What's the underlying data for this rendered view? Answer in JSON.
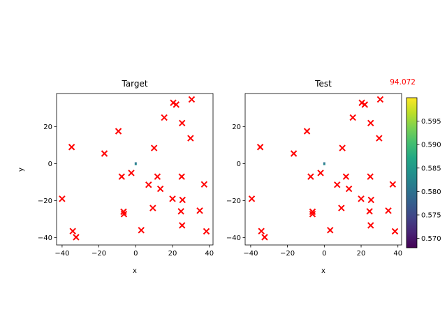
{
  "corner_value": "94.072",
  "colors": {
    "marker": "#ff0000",
    "corner_value": "#ff0000",
    "frame": "#000000"
  },
  "chart_data": [
    {
      "type": "scatter",
      "title": "Target",
      "xlabel": "x",
      "ylabel": "y",
      "xlim": [
        -43,
        42
      ],
      "ylim": [
        -44,
        38
      ],
      "xticks": [
        -40,
        -20,
        0,
        20,
        40
      ],
      "yticks": [
        -40,
        -20,
        0,
        20
      ],
      "marker": "x",
      "center_patch": {
        "x": 0,
        "y": 0,
        "value": 0.583
      },
      "points": [
        {
          "x": -40.0,
          "y": -19.0
        },
        {
          "x": -34.8,
          "y": 9.0
        },
        {
          "x": -34.2,
          "y": -36.5
        },
        {
          "x": -32.4,
          "y": -39.8
        },
        {
          "x": -17.0,
          "y": 5.5
        },
        {
          "x": -9.4,
          "y": 17.6
        },
        {
          "x": -7.6,
          "y": -7.0
        },
        {
          "x": -6.6,
          "y": -26.0
        },
        {
          "x": -6.4,
          "y": -27.3
        },
        {
          "x": -2.4,
          "y": -5.0
        },
        {
          "x": 3.0,
          "y": -36.0
        },
        {
          "x": 7.0,
          "y": -11.4
        },
        {
          "x": 9.3,
          "y": -24.0
        },
        {
          "x": 10.0,
          "y": 8.5
        },
        {
          "x": 11.8,
          "y": -7.0
        },
        {
          "x": 13.4,
          "y": -13.6
        },
        {
          "x": 15.5,
          "y": 25.0
        },
        {
          "x": 20.0,
          "y": -19.0
        },
        {
          "x": 20.4,
          "y": 33.0
        },
        {
          "x": 22.0,
          "y": 32.0
        },
        {
          "x": 24.6,
          "y": -25.8
        },
        {
          "x": 25.0,
          "y": -7.0
        },
        {
          "x": 25.2,
          "y": -33.4
        },
        {
          "x": 25.2,
          "y": 22.0
        },
        {
          "x": 25.4,
          "y": -19.6
        },
        {
          "x": 29.8,
          "y": 13.8
        },
        {
          "x": 30.4,
          "y": 34.8
        },
        {
          "x": 34.8,
          "y": -25.4
        },
        {
          "x": 37.2,
          "y": -11.2
        },
        {
          "x": 38.4,
          "y": -36.6
        }
      ]
    },
    {
      "type": "scatter",
      "title": "Test",
      "xlabel": "x",
      "ylabel": "",
      "xlim": [
        -43,
        42
      ],
      "ylim": [
        -44,
        38
      ],
      "xticks": [
        -40,
        -20,
        0,
        20,
        40
      ],
      "yticks": [
        -40,
        -20,
        0,
        20
      ],
      "marker": "x",
      "center_patch": {
        "x": 0,
        "y": 0,
        "value": 0.583
      },
      "points": [
        {
          "x": -39.4,
          "y": -19.0
        },
        {
          "x": -34.8,
          "y": 9.0
        },
        {
          "x": -34.2,
          "y": -36.5
        },
        {
          "x": -32.4,
          "y": -39.8
        },
        {
          "x": -16.6,
          "y": 5.5
        },
        {
          "x": -9.4,
          "y": 17.6
        },
        {
          "x": -7.4,
          "y": -7.0
        },
        {
          "x": -6.4,
          "y": -26.0
        },
        {
          "x": -6.4,
          "y": -27.3
        },
        {
          "x": -2.0,
          "y": -5.0
        },
        {
          "x": 3.2,
          "y": -36.0
        },
        {
          "x": 7.0,
          "y": -11.4
        },
        {
          "x": 9.3,
          "y": -24.0
        },
        {
          "x": 9.8,
          "y": 8.5
        },
        {
          "x": 11.8,
          "y": -7.0
        },
        {
          "x": 13.4,
          "y": -13.6
        },
        {
          "x": 15.5,
          "y": 25.0
        },
        {
          "x": 20.0,
          "y": -19.0
        },
        {
          "x": 20.4,
          "y": 33.0
        },
        {
          "x": 22.0,
          "y": 32.0
        },
        {
          "x": 24.6,
          "y": -25.8
        },
        {
          "x": 25.0,
          "y": -7.0
        },
        {
          "x": 25.2,
          "y": -33.4
        },
        {
          "x": 25.2,
          "y": 22.0
        },
        {
          "x": 25.4,
          "y": -19.6
        },
        {
          "x": 29.8,
          "y": 13.8
        },
        {
          "x": 30.4,
          "y": 34.8
        },
        {
          "x": 34.8,
          "y": -25.4
        },
        {
          "x": 37.2,
          "y": -11.2
        },
        {
          "x": 38.4,
          "y": -36.6
        }
      ]
    }
  ],
  "colorbar": {
    "cmap": "viridis",
    "range": [
      0.568,
      0.6
    ],
    "ticks": [
      0.57,
      0.575,
      0.58,
      0.585,
      0.59,
      0.595
    ],
    "tick_labels": [
      "0.570",
      "0.575",
      "0.580",
      "0.585",
      "0.590",
      "0.595"
    ]
  }
}
